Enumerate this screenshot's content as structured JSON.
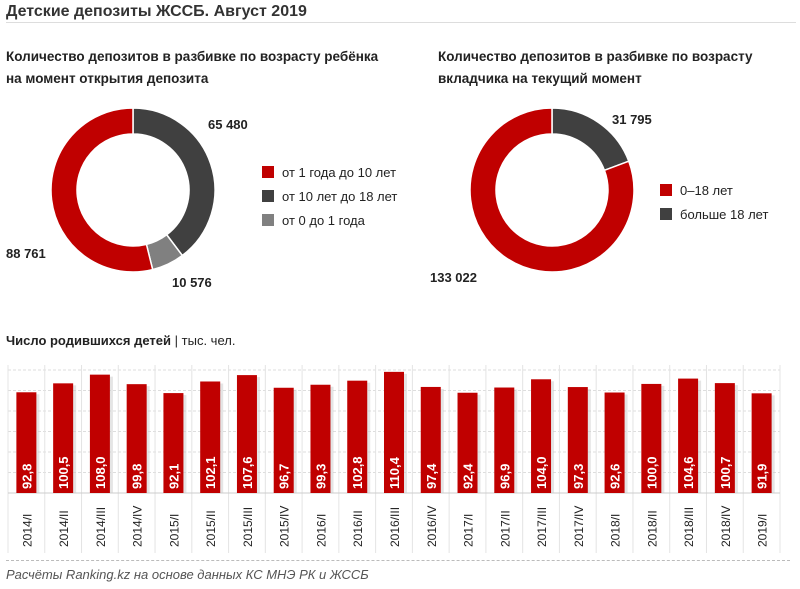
{
  "title": "Детские депозиты ЖССБ. Август 2019",
  "colors": {
    "red": "#c00000",
    "dark": "#404040",
    "gray": "#808080"
  },
  "chart_data": [
    {
      "type": "pie",
      "donut": true,
      "title": "Количество  депозитов в разбивке  по возрасту ребёнка на момент открытия  депозита",
      "slices": [
        {
          "label": "от 10 лет до 18 лет",
          "value": 65480,
          "display": "65 480",
          "color": "#404040"
        },
        {
          "label": "от 0 до 1 года",
          "value": 10576,
          "display": "10 576",
          "color": "#808080"
        },
        {
          "label": "от 1 года до 10 лет",
          "value": 88761,
          "display": "88 761",
          "color": "#c00000"
        }
      ],
      "legend": [
        "от 1 года до 10 лет",
        "от 10 лет до 18 лет",
        "от 0 до 1 года"
      ]
    },
    {
      "type": "pie",
      "donut": true,
      "title": "Количество  депозитов в разбивке  по возрасту вкладчика  на текущий момент",
      "slices": [
        {
          "label": "больше 18 лет",
          "value": 31795,
          "display": "31 795",
          "color": "#404040"
        },
        {
          "label": "0–18 лет",
          "value": 133022,
          "display": "133 022",
          "color": "#c00000"
        }
      ],
      "legend": [
        "0–18 лет",
        "больше 18 лет"
      ]
    },
    {
      "type": "bar",
      "title": "Число  родившихся  детей",
      "unit": "тыс. чел.",
      "separator": "|",
      "categories": [
        "2014/I",
        "2014/II",
        "2014/III",
        "2014/IV",
        "2015/I",
        "2015/II",
        "2015/III",
        "2015/IV",
        "2016/I",
        "2016/II",
        "2016/III",
        "2016/IV",
        "2017/I",
        "2017/II",
        "2017/III",
        "2017/IV",
        "2018/I",
        "2018/II",
        "2018/III",
        "2018/IV",
        "2019/I"
      ],
      "values": [
        92.8,
        100.5,
        108.0,
        99.8,
        92.1,
        102.1,
        107.6,
        96.7,
        99.3,
        102.8,
        110.4,
        97.4,
        92.4,
        96.9,
        104.0,
        97.3,
        92.6,
        100.0,
        104.6,
        100.7,
        91.9
      ],
      "labels": [
        "92,8",
        "100,5",
        "108,0",
        "99,8",
        "92,1",
        "102,1",
        "107,6",
        "96,7",
        "99,3",
        "102,8",
        "110,4",
        "97,4",
        "92,4",
        "96,9",
        "104,0",
        "97,3",
        "92,6",
        "100,0",
        "104,6",
        "100,7",
        "91,9"
      ],
      "ylim": [
        6,
        112
      ],
      "grid": true
    }
  ],
  "footer": "Расчёты Ranking.kz на основе данных  КС МНЭ РК и ЖССБ"
}
